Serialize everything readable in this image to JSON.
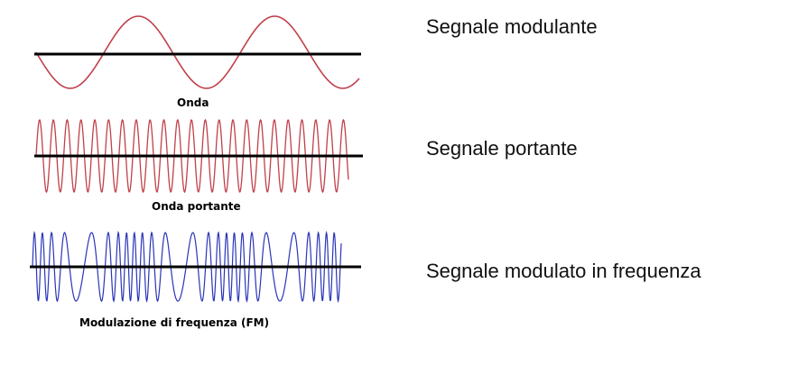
{
  "panels": [
    {
      "caption": "Onda",
      "description": "Segnale modulante",
      "wave_color": "#c0404a"
    },
    {
      "caption": "Onda portante",
      "description": "Segnale portante",
      "wave_color": "#c0404a"
    },
    {
      "caption": "Modulazione di frequenza (FM)",
      "description": "Segnale modulato in frequenza",
      "wave_color": "#2a35b8"
    }
  ],
  "axis_color": "#000000"
}
